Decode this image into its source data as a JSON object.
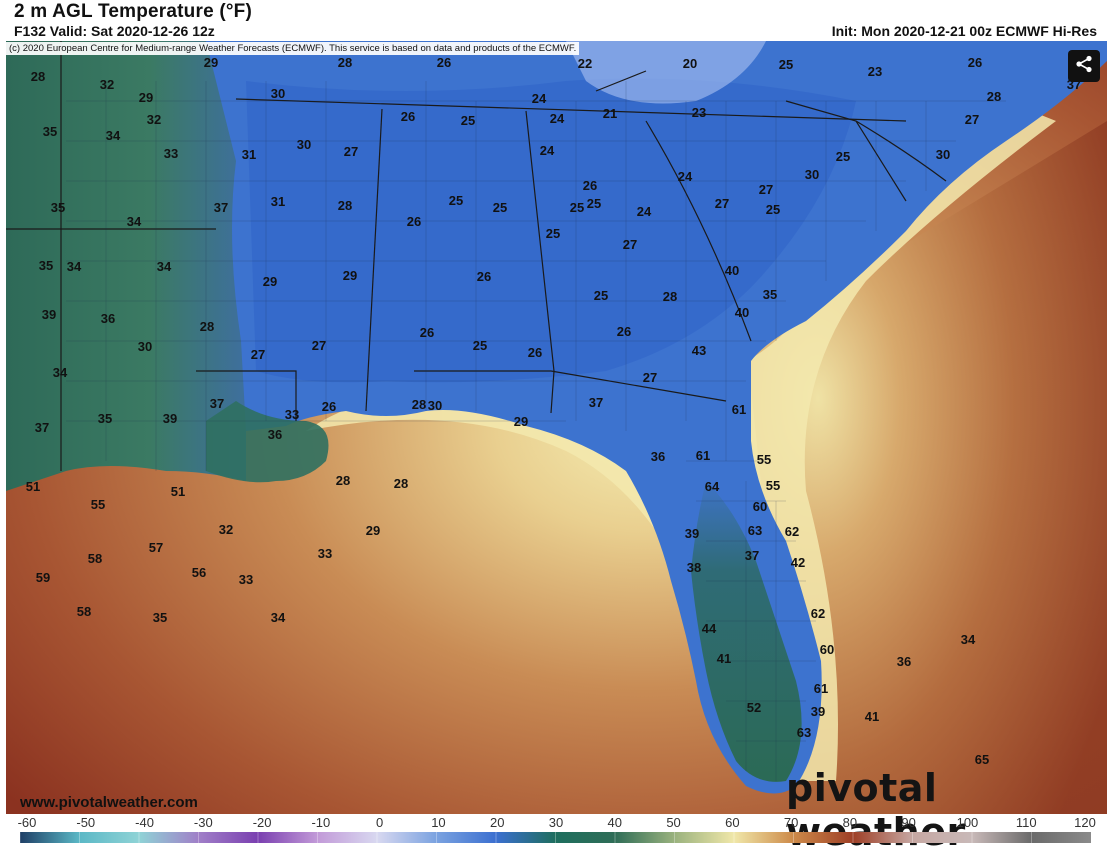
{
  "header": {
    "title": "2 m AGL Temperature (°F)",
    "subtitle": "F132 Valid: Sat 2020-12-26 12z",
    "init": "Init: Mon 2020-12-21 00z ECMWF Hi-Res"
  },
  "map": {
    "copyright": "(c) 2020 European Centre for Medium-range Weather Forecasts (ECMWF). This service is based on data and products of the ECMWF.",
    "region": "Southeastern United States",
    "temperature_labels": [
      "28",
      "29",
      "32",
      "29",
      "28",
      "26",
      "22",
      "20",
      "25",
      "23",
      "26",
      "37",
      "35",
      "34",
      "32",
      "33",
      "31",
      "30",
      "30",
      "27",
      "26",
      "25",
      "24",
      "21",
      "23",
      "24",
      "24",
      "24",
      "28",
      "27",
      "35",
      "34",
      "31",
      "28",
      "25",
      "25",
      "24",
      "27",
      "25",
      "25",
      "30",
      "35",
      "34",
      "37",
      "34",
      "26",
      "25",
      "26",
      "25",
      "27",
      "30",
      "39",
      "36",
      "29",
      "29",
      "26",
      "25",
      "26",
      "25",
      "27",
      "28",
      "40",
      "35",
      "34",
      "30",
      "28",
      "27",
      "27",
      "26",
      "25",
      "26",
      "27",
      "43",
      "40",
      "37",
      "35",
      "39",
      "37",
      "36",
      "33",
      "26",
      "28",
      "30",
      "37",
      "61",
      "55",
      "51",
      "51",
      "28",
      "28",
      "29",
      "36",
      "61",
      "55",
      "55",
      "32",
      "29",
      "39",
      "64",
      "62",
      "59",
      "58",
      "57",
      "56",
      "33",
      "33",
      "63",
      "60",
      "58",
      "35",
      "34",
      "38",
      "37",
      "42",
      "62",
      "60",
      "34",
      "36",
      "44",
      "41",
      "61",
      "39",
      "41",
      "63",
      "52",
      "65"
    ]
  },
  "share_icon": "share-icon",
  "website": "www.pivotalweather.com",
  "brand": "pivotal weather",
  "colorbar": {
    "ticks": [
      "-60",
      "-50",
      "-40",
      "-30",
      "-20",
      "-10",
      "0",
      "10",
      "20",
      "30",
      "40",
      "50",
      "60",
      "70",
      "80",
      "90",
      "100",
      "110",
      "120"
    ],
    "colors": [
      "#1e3f66",
      "#5bb8c6",
      "#8fd3d6",
      "#a07fc8",
      "#7a3fb0",
      "#c29ad8",
      "#d8d8f0",
      "#7aa2e0",
      "#3b6fd0",
      "#1e6e5e",
      "#2f6d57",
      "#9ab27e",
      "#f0e7a9",
      "#cd8a49",
      "#9e3f26",
      "#c6a7a2",
      "#c8b9b8",
      "#6a6a6a",
      "#8a8a8a"
    ]
  }
}
